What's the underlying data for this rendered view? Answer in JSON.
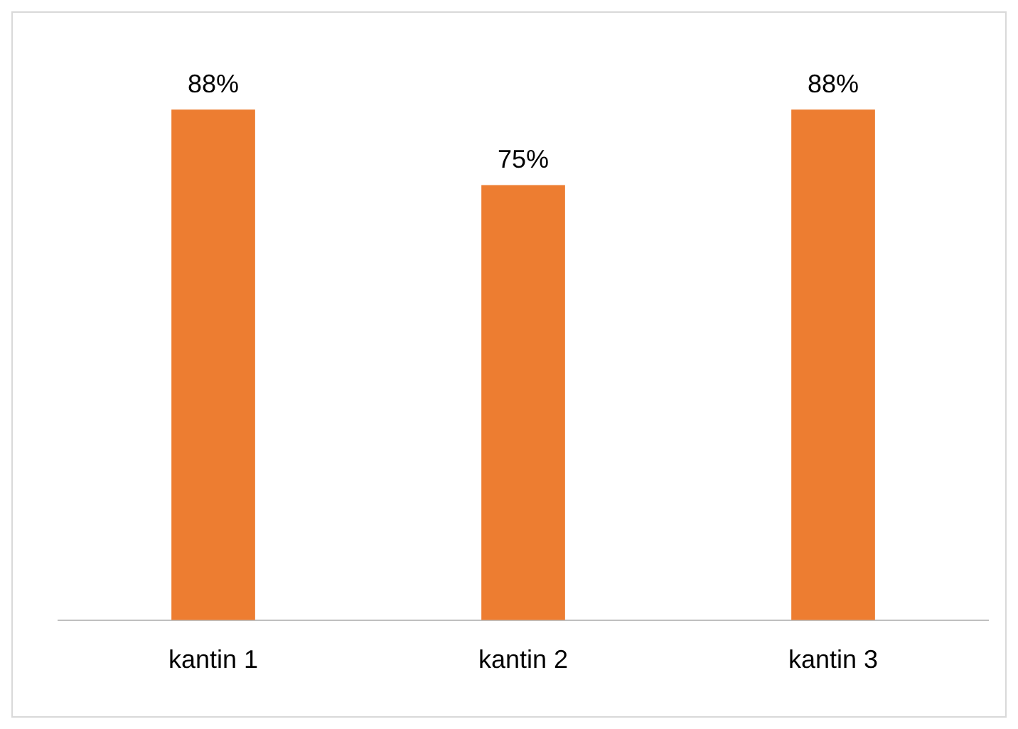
{
  "chart_data": {
    "type": "bar",
    "categories": [
      "kantin 1",
      "kantin 2",
      "kantin 3"
    ],
    "values": [
      88,
      75,
      88
    ],
    "value_labels": [
      "88%",
      "75%",
      "88%"
    ],
    "color": "#ed7d31",
    "legend": false
  }
}
